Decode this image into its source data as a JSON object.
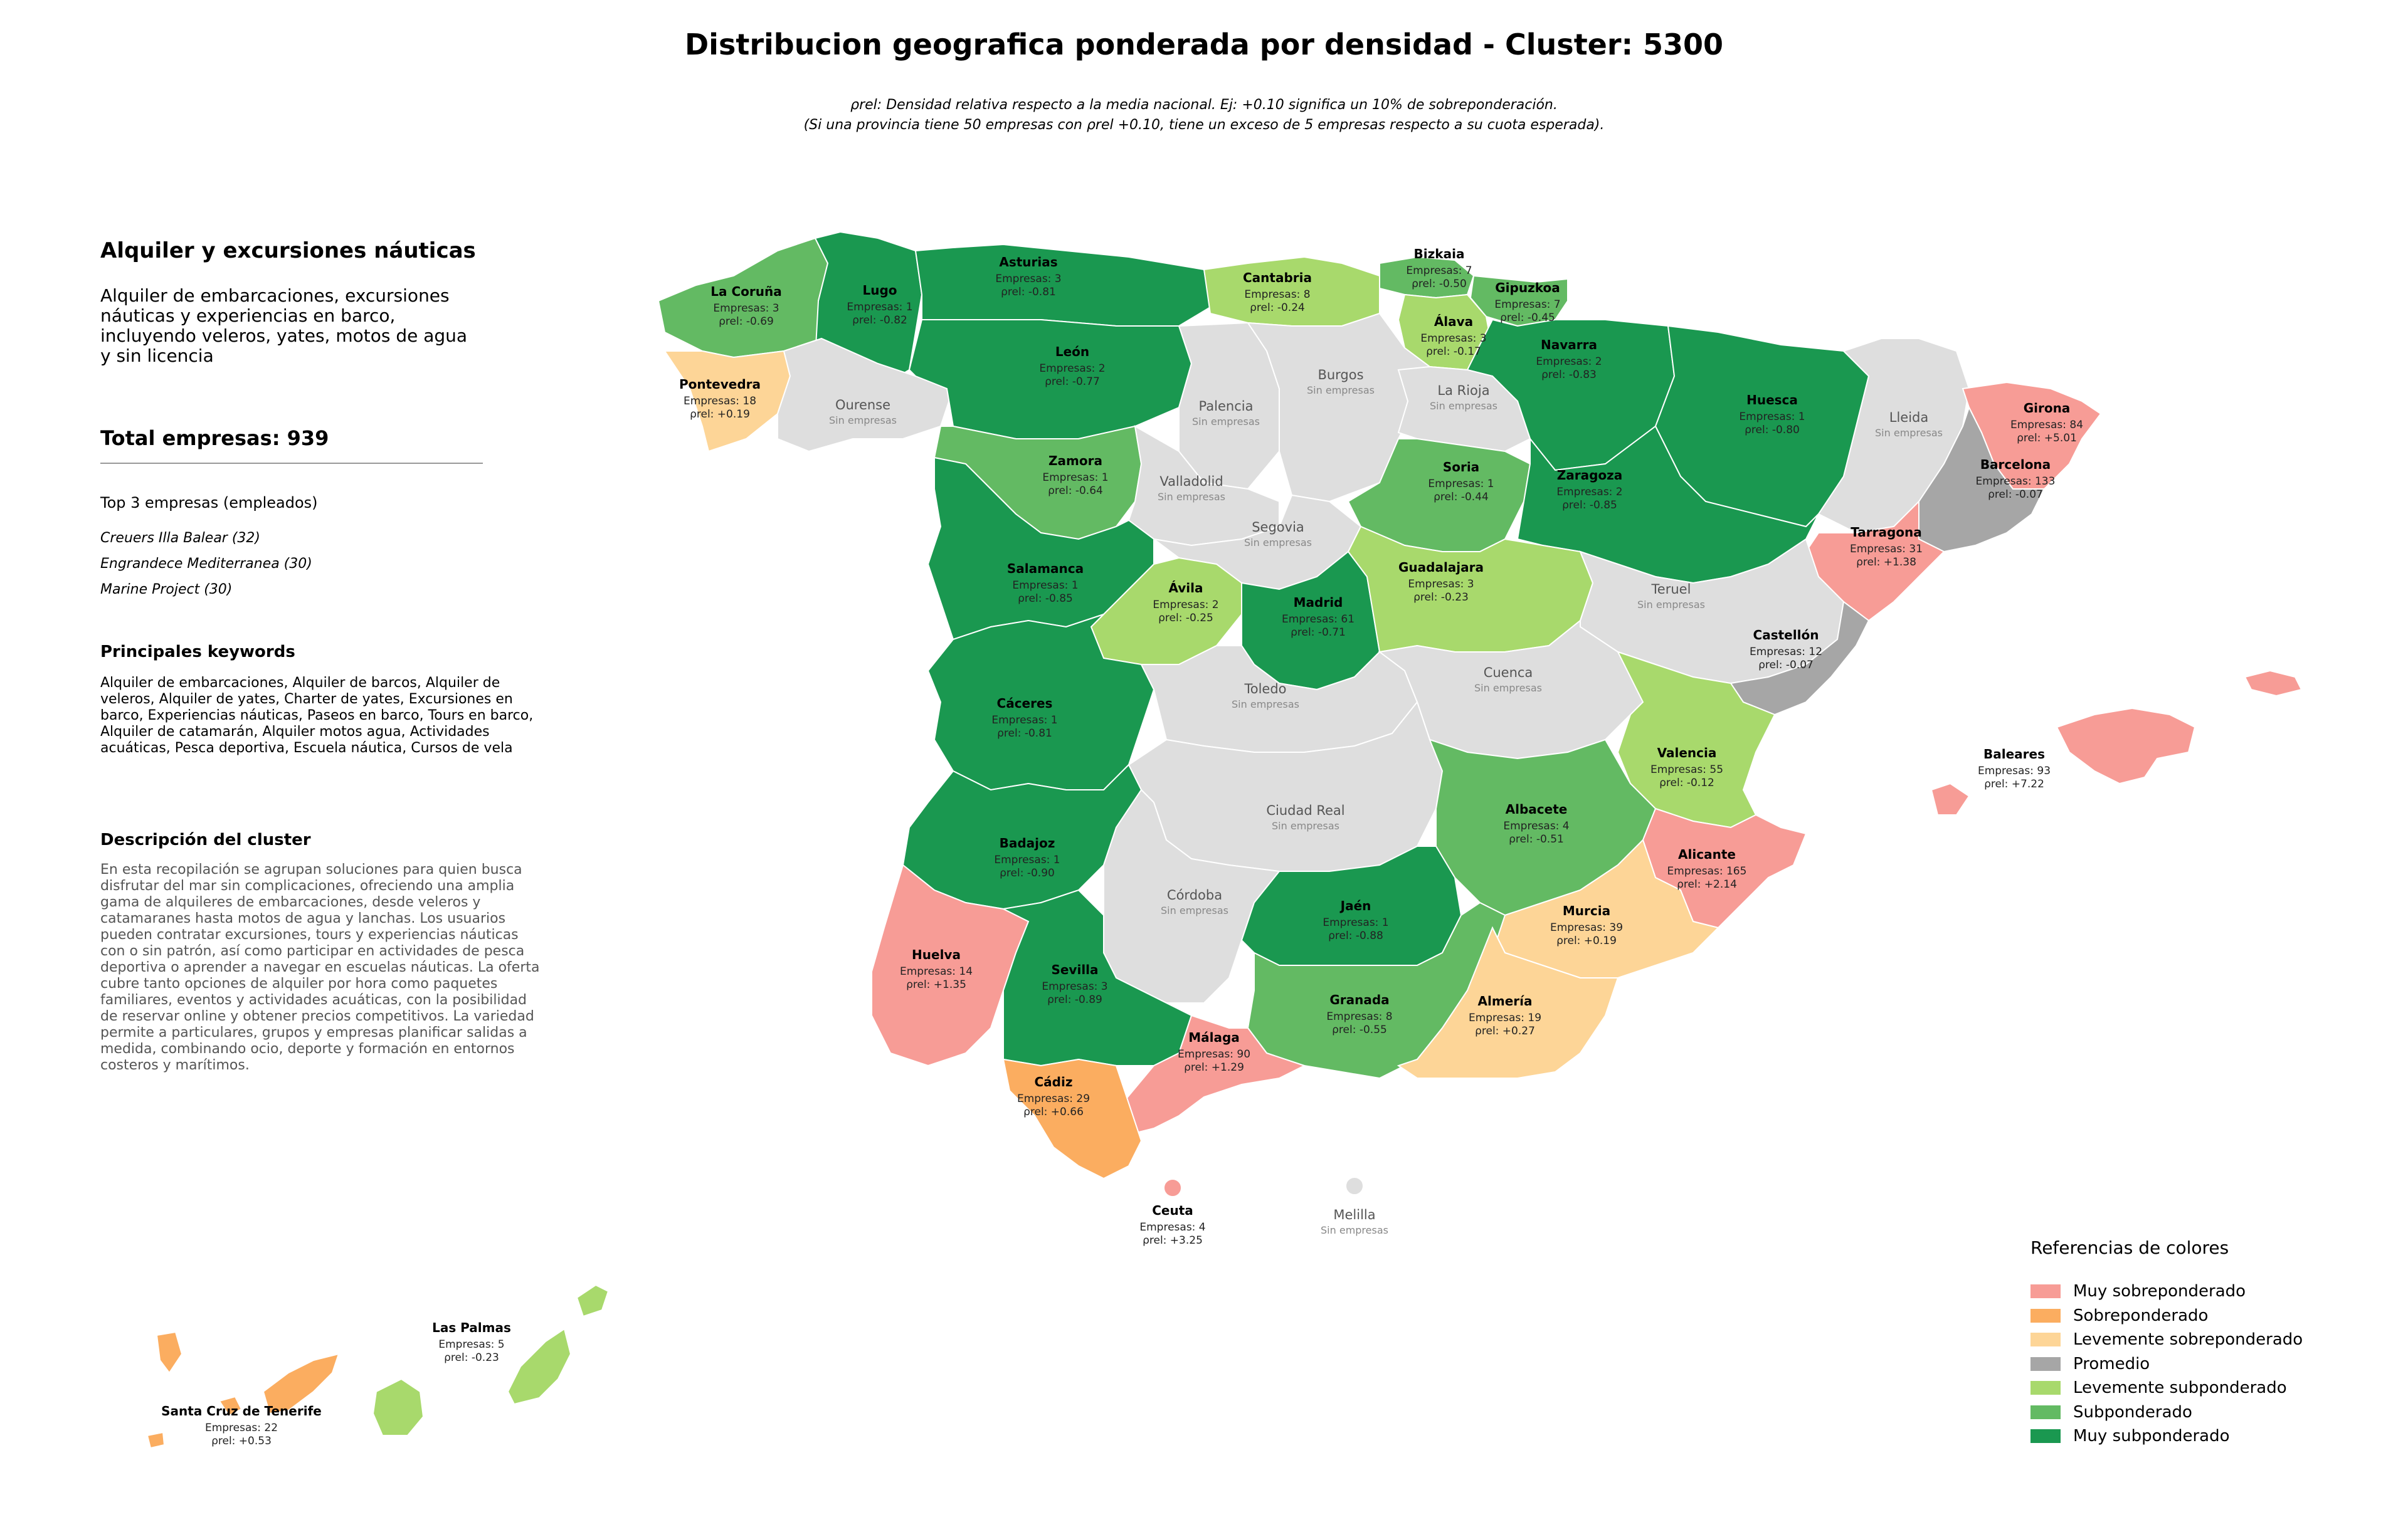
{
  "title": "Distribucion geografica ponderada por densidad - Cluster: 5300",
  "subtitle": {
    "line1": "ρrel: Densidad relativa respecto a la media nacional. Ej: +0.10 significa un 10% de sobreponderación.",
    "line2": "(Si una provincia tiene 50 empresas con ρrel +0.10, tiene un exceso de 5 empresas respecto a su cuota esperada)."
  },
  "panel": {
    "title": "Alquiler y excursiones náuticas",
    "description": "Alquiler de embarcaciones, excursiones náuticas y experiencias en barco, incluyendo veleros, yates, motos de agua y sin licencia",
    "total": "Total empresas: 939",
    "top3_title": "Top 3 empresas (empleados)",
    "top3": [
      "Creuers Illa Balear (32)",
      "Engrandece Mediterranea (30)",
      "Marine Project (30)"
    ],
    "keywords_title": "Principales keywords",
    "keywords": "Alquiler de embarcaciones, Alquiler de barcos, Alquiler de veleros, Alquiler de yates, Charter de yates, Excursiones en barco, Experiencias náuticas, Paseos en barco, Tours en barco, Alquiler de catamarán, Alquiler motos agua, Actividades acuáticas, Pesca deportiva, Escuela náutica, Cursos de vela",
    "cluster_title": "Descripción del cluster",
    "cluster_text": "En esta recopilación se agrupan soluciones para quien busca disfrutar del mar sin complicaciones, ofreciendo una amplia gama de alquileres de embarcaciones, desde veleros y catamaranes hasta motos de agua y lanchas. Los usuarios pueden contratar excursiones, tours y experiencias náuticas con o sin patrón, así como participar en actividades de pesca deportiva o aprender a navegar en escuelas náuticas. La oferta cubre tanto opciones de alquiler por hora como paquetes familiares, eventos y actividades acuáticas, con la posibilidad de reservar online y obtener precios competitivos. La variedad permite a particulares, grupos y empresas planificar salidas a medida, combinando ocio, deporte y formación en entornos costeros y marítimos."
  },
  "legend": {
    "title": "Referencias de colores",
    "items": [
      {
        "label": "Muy sobreponderado",
        "color": "#f79c96"
      },
      {
        "label": "Sobreponderado",
        "color": "#fbad60"
      },
      {
        "label": "Levemente sobreponderado",
        "color": "#fdd597"
      },
      {
        "label": "Promedio",
        "color": "#a6a6a6"
      },
      {
        "label": "Levemente subponderado",
        "color": "#a8d96c"
      },
      {
        "label": "Subponderado",
        "color": "#63ba63"
      },
      {
        "label": "Muy subponderado",
        "color": "#1a9850"
      }
    ]
  },
  "colors": {
    "sin_empresas": "#dedede",
    "border": "#ffffff"
  },
  "empresas_prefix": "Empresas: ",
  "rho_symbol": "ρrel: ",
  "sin_empresas_label": "Sin empresas",
  "provinces": [
    {
      "name": "La Coruña",
      "empresas": 3,
      "rho": "-0.69",
      "cat": 5
    },
    {
      "name": "Lugo",
      "empresas": 1,
      "rho": "-0.82",
      "cat": 6
    },
    {
      "name": "Asturias",
      "empresas": 3,
      "rho": "-0.81",
      "cat": 6
    },
    {
      "name": "Cantabria",
      "empresas": 8,
      "rho": "-0.24",
      "cat": 4
    },
    {
      "name": "Bizkaia",
      "empresas": 7,
      "rho": "-0.50",
      "cat": 5
    },
    {
      "name": "Gipuzkoa",
      "empresas": 7,
      "rho": "-0.45",
      "cat": 5
    },
    {
      "name": "Álava",
      "empresas": 3,
      "rho": "-0.17",
      "cat": 4
    },
    {
      "name": "Navarra",
      "empresas": 2,
      "rho": "-0.83",
      "cat": 6
    },
    {
      "name": "Pontevedra",
      "empresas": 18,
      "rho": "+0.19",
      "cat": 2
    },
    {
      "name": "Ourense",
      "empresas": null,
      "rho": null,
      "cat": null
    },
    {
      "name": "León",
      "empresas": 2,
      "rho": "-0.77",
      "cat": 6
    },
    {
      "name": "Palencia",
      "empresas": null,
      "rho": null,
      "cat": null
    },
    {
      "name": "Burgos",
      "empresas": null,
      "rho": null,
      "cat": null
    },
    {
      "name": "La Rioja",
      "empresas": null,
      "rho": null,
      "cat": null
    },
    {
      "name": "Huesca",
      "empresas": 1,
      "rho": "-0.80",
      "cat": 6
    },
    {
      "name": "Lleida",
      "empresas": null,
      "rho": null,
      "cat": null
    },
    {
      "name": "Girona",
      "empresas": 84,
      "rho": "+5.01",
      "cat": 0
    },
    {
      "name": "Zamora",
      "empresas": 1,
      "rho": "-0.64",
      "cat": 5
    },
    {
      "name": "Valladolid",
      "empresas": null,
      "rho": null,
      "cat": null
    },
    {
      "name": "Soria",
      "empresas": 1,
      "rho": "-0.44",
      "cat": 5
    },
    {
      "name": "Zaragoza",
      "empresas": 2,
      "rho": "-0.85",
      "cat": 6
    },
    {
      "name": "Barcelona",
      "empresas": 133,
      "rho": "-0.07",
      "cat": 3
    },
    {
      "name": "Tarragona",
      "empresas": 31,
      "rho": "+1.38",
      "cat": 0
    },
    {
      "name": "Segovia",
      "empresas": null,
      "rho": null,
      "cat": null
    },
    {
      "name": "Salamanca",
      "empresas": 1,
      "rho": "-0.85",
      "cat": 6
    },
    {
      "name": "Ávila",
      "empresas": 2,
      "rho": "-0.25",
      "cat": 4
    },
    {
      "name": "Madrid",
      "empresas": 61,
      "rho": "-0.71",
      "cat": 6
    },
    {
      "name": "Guadalajara",
      "empresas": 3,
      "rho": "-0.23",
      "cat": 4
    },
    {
      "name": "Teruel",
      "empresas": null,
      "rho": null,
      "cat": null
    },
    {
      "name": "Castellón",
      "empresas": 12,
      "rho": "-0.07",
      "cat": 3
    },
    {
      "name": "Cáceres",
      "empresas": 1,
      "rho": "-0.81",
      "cat": 6
    },
    {
      "name": "Toledo",
      "empresas": null,
      "rho": null,
      "cat": null
    },
    {
      "name": "Cuenca",
      "empresas": null,
      "rho": null,
      "cat": null
    },
    {
      "name": "Valencia",
      "empresas": 55,
      "rho": "-0.12",
      "cat": 4
    },
    {
      "name": "Baleares",
      "empresas": 93,
      "rho": "+7.22",
      "cat": 0
    },
    {
      "name": "Badajoz",
      "empresas": 1,
      "rho": "-0.90",
      "cat": 6
    },
    {
      "name": "Ciudad Real",
      "empresas": null,
      "rho": null,
      "cat": null
    },
    {
      "name": "Albacete",
      "empresas": 4,
      "rho": "-0.51",
      "cat": 5
    },
    {
      "name": "Alicante",
      "empresas": 165,
      "rho": "+2.14",
      "cat": 0
    },
    {
      "name": "Córdoba",
      "empresas": null,
      "rho": null,
      "cat": null
    },
    {
      "name": "Jaén",
      "empresas": 1,
      "rho": "-0.88",
      "cat": 6
    },
    {
      "name": "Murcia",
      "empresas": 39,
      "rho": "+0.19",
      "cat": 2
    },
    {
      "name": "Huelva",
      "empresas": 14,
      "rho": "+1.35",
      "cat": 0
    },
    {
      "name": "Sevilla",
      "empresas": 3,
      "rho": "-0.89",
      "cat": 6
    },
    {
      "name": "Granada",
      "empresas": 8,
      "rho": "-0.55",
      "cat": 5
    },
    {
      "name": "Almería",
      "empresas": 19,
      "rho": "+0.27",
      "cat": 2
    },
    {
      "name": "Málaga",
      "empresas": 90,
      "rho": "+1.29",
      "cat": 0
    },
    {
      "name": "Cádiz",
      "empresas": 29,
      "rho": "+0.66",
      "cat": 1
    },
    {
      "name": "Ceuta",
      "empresas": 4,
      "rho": "+3.25",
      "cat": 0
    },
    {
      "name": "Melilla",
      "empresas": null,
      "rho": null,
      "cat": null
    },
    {
      "name": "Las Palmas",
      "empresas": 5,
      "rho": "-0.23",
      "cat": 4
    },
    {
      "name": "Santa Cruz de Tenerife",
      "empresas": 22,
      "rho": "+0.53",
      "cat": 1
    }
  ]
}
